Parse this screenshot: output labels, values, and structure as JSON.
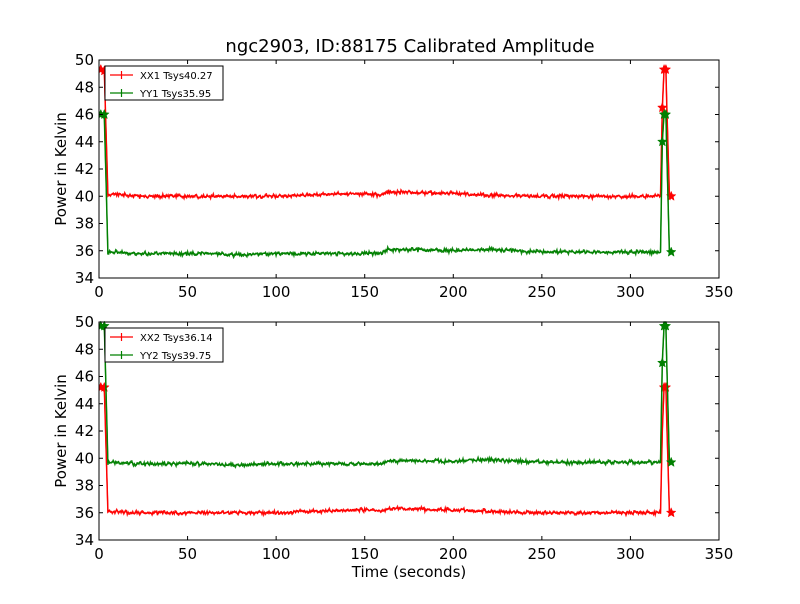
{
  "chart_data": [
    {
      "type": "line",
      "title": "ngc2903, ID:88175 Calibrated Amplitude",
      "xlabel": "",
      "ylabel": "Power in Kelvin",
      "xlim": [
        0,
        350
      ],
      "ylim": [
        34,
        50
      ],
      "xticks": [
        "0",
        "50",
        "100",
        "150",
        "200",
        "250",
        "300",
        "350"
      ],
      "yticks": [
        "34",
        "36",
        "38",
        "40",
        "42",
        "44",
        "46",
        "48",
        "50"
      ],
      "grid": false,
      "legend_position": "top-left",
      "colors": {
        "XX1": "#ff0000",
        "YY1": "#008000"
      },
      "series": [
        {
          "name": "XX1 Tsys40.27",
          "color": "#ff0000",
          "x": [
            1,
            3,
            5,
            10,
            20,
            40,
            60,
            80,
            100,
            120,
            140,
            150,
            160,
            163,
            170,
            200,
            220,
            250,
            280,
            300,
            317,
            318,
            319,
            320,
            322,
            323
          ],
          "y": [
            49.3,
            49.2,
            40.1,
            40.2,
            40.0,
            40.0,
            40.0,
            40.0,
            40.0,
            40.1,
            40.2,
            40.2,
            40.1,
            40.3,
            40.3,
            40.2,
            40.1,
            40.0,
            40.0,
            40.0,
            40.0,
            46.5,
            49.3,
            49.3,
            40.0,
            40.0
          ]
        },
        {
          "name": "YY1 Tsys35.95",
          "color": "#008000",
          "x": [
            1,
            3,
            5,
            10,
            20,
            40,
            60,
            78,
            100,
            120,
            140,
            150,
            160,
            163,
            170,
            200,
            220,
            250,
            280,
            300,
            317,
            318,
            319,
            320,
            322,
            323
          ],
          "y": [
            46.0,
            46.0,
            35.9,
            35.9,
            35.8,
            35.8,
            35.8,
            35.7,
            35.8,
            35.8,
            35.8,
            35.8,
            35.8,
            36.1,
            36.1,
            36.0,
            36.1,
            35.9,
            35.9,
            35.9,
            35.9,
            44.0,
            46.0,
            46.0,
            35.9,
            35.9
          ]
        }
      ]
    },
    {
      "type": "line",
      "title": "",
      "xlabel": "Time (seconds)",
      "ylabel": "Power in Kelvin",
      "xlim": [
        0,
        350
      ],
      "ylim": [
        34,
        50
      ],
      "xticks": [
        "0",
        "50",
        "100",
        "150",
        "200",
        "250",
        "300",
        "350"
      ],
      "yticks": [
        "34",
        "36",
        "38",
        "40",
        "42",
        "44",
        "46",
        "48",
        "50"
      ],
      "grid": false,
      "legend_position": "top-left",
      "colors": {
        "XX2": "#ff0000",
        "YY2": "#008000"
      },
      "series": [
        {
          "name": "XX2 Tsys36.14",
          "color": "#ff0000",
          "x": [
            1,
            3,
            5,
            10,
            20,
            40,
            60,
            80,
            100,
            120,
            140,
            150,
            160,
            163,
            170,
            200,
            220,
            250,
            280,
            300,
            317,
            318,
            319,
            320,
            322,
            323
          ],
          "y": [
            45.2,
            45.2,
            36.1,
            36.1,
            36.0,
            36.0,
            36.0,
            36.0,
            36.0,
            36.1,
            36.2,
            36.2,
            36.1,
            36.3,
            36.3,
            36.2,
            36.1,
            36.0,
            36.0,
            36.0,
            36.0,
            42.0,
            45.2,
            45.2,
            36.0,
            36.0
          ]
        },
        {
          "name": "YY2 Tsys39.75",
          "color": "#008000",
          "x": [
            1,
            3,
            5,
            10,
            20,
            40,
            60,
            78,
            100,
            120,
            140,
            150,
            160,
            163,
            170,
            200,
            220,
            250,
            280,
            300,
            317,
            318,
            319,
            320,
            322,
            323
          ],
          "y": [
            49.7,
            49.7,
            39.7,
            39.7,
            39.6,
            39.6,
            39.6,
            39.5,
            39.6,
            39.6,
            39.6,
            39.6,
            39.6,
            39.8,
            39.8,
            39.8,
            39.9,
            39.7,
            39.7,
            39.7,
            39.7,
            47.0,
            49.7,
            49.7,
            39.7,
            39.7
          ]
        }
      ]
    }
  ]
}
